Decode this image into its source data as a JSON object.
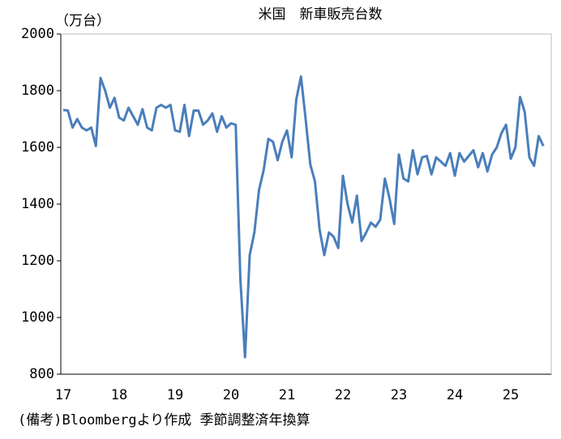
{
  "chart_data": {
    "type": "line",
    "title": "米国　新車販売台数",
    "y_label": "（万台）",
    "note": "(備考)Bloombergより作成 季節調整済年換算",
    "categories": [
      "17",
      null,
      null,
      null,
      null,
      null,
      null,
      null,
      null,
      null,
      null,
      null,
      "18",
      null,
      null,
      null,
      null,
      null,
      null,
      null,
      null,
      null,
      null,
      null,
      "19",
      null,
      null,
      null,
      null,
      null,
      null,
      null,
      null,
      null,
      null,
      null,
      "20",
      null,
      null,
      null,
      null,
      null,
      null,
      null,
      null,
      null,
      null,
      null,
      "21",
      null,
      null,
      null,
      null,
      null,
      null,
      null,
      null,
      null,
      null,
      null,
      "22",
      null,
      null,
      null,
      null,
      null,
      null,
      null,
      null,
      null,
      null,
      null,
      "23",
      null,
      null,
      null,
      null,
      null,
      null,
      null,
      null,
      null,
      null,
      null,
      "24",
      null,
      null,
      null,
      null,
      null,
      null,
      null,
      null,
      null,
      null,
      null,
      "25",
      null,
      null,
      null,
      null,
      null,
      null,
      null
    ],
    "series": [
      {
        "name": "新車販売台数",
        "color": "#4a7ebb",
        "values": [
          1732,
          1730,
          1670,
          1700,
          1670,
          1660,
          1670,
          1605,
          1845,
          1800,
          1740,
          1775,
          1705,
          1695,
          1740,
          1710,
          1680,
          1735,
          1670,
          1660,
          1740,
          1750,
          1740,
          1750,
          1660,
          1655,
          1750,
          1640,
          1730,
          1730,
          1680,
          1695,
          1720,
          1655,
          1710,
          1670,
          1685,
          1680,
          1135,
          860,
          1220,
          1300,
          1450,
          1520,
          1630,
          1620,
          1555,
          1620,
          1660,
          1565,
          1770,
          1850,
          1700,
          1540,
          1480,
          1310,
          1220,
          1300,
          1285,
          1245,
          1500,
          1400,
          1335,
          1430,
          1270,
          1300,
          1335,
          1320,
          1345,
          1490,
          1420,
          1330,
          1575,
          1490,
          1480,
          1590,
          1505,
          1565,
          1570,
          1505,
          1565,
          1550,
          1535,
          1580,
          1500,
          1580,
          1550,
          1570,
          1590,
          1530,
          1580,
          1515,
          1575,
          1600,
          1650,
          1680,
          1560,
          1600,
          1778,
          1725,
          1565,
          1535,
          1640,
          1605
        ]
      }
    ],
    "ylim": [
      800,
      2000
    ],
    "yticks": [
      800,
      1000,
      1200,
      1400,
      1600,
      1800,
      2000
    ]
  }
}
